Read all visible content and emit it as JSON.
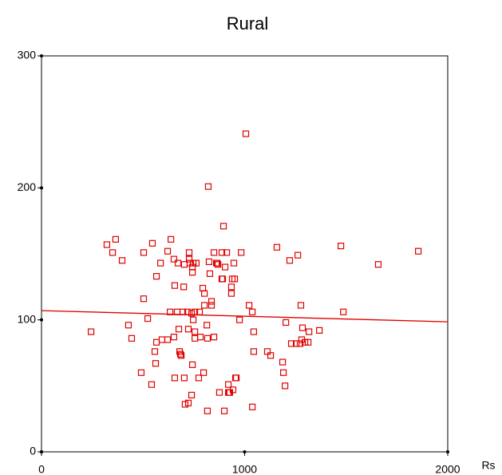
{
  "chart_data": {
    "type": "scatter",
    "title": "Rural",
    "x_label": "Rs",
    "color": "#e00000",
    "x": [
      244,
      322,
      350,
      365,
      397,
      428,
      444,
      491,
      503,
      503,
      523,
      542,
      546,
      558,
      562,
      566,
      566,
      586,
      593,
      621,
      621,
      637,
      633,
      652,
      652,
      656,
      656,
      668,
      672,
      676,
      680,
      684,
      688,
      696,
      700,
      703,
      703,
      707,
      719,
      723,
      723,
      727,
      727,
      731,
      739,
      739,
      743,
      743,
      743,
      747,
      747,
      755,
      755,
      755,
      762,
      774,
      778,
      782,
      794,
      798,
      802,
      802,
      814,
      817,
      817,
      821,
      825,
      829,
      837,
      837,
      849,
      849,
      861,
      865,
      869,
      876,
      888,
      888,
      892,
      896,
      900,
      904,
      912,
      920,
      920,
      924,
      927,
      935,
      935,
      939,
      943,
      947,
      951,
      955,
      959,
      975,
      983,
      1006,
      1022,
      1038,
      1045,
      1045,
      1038,
      1112,
      1128,
      1159,
      1187,
      1191,
      1203,
      1199,
      1222,
      1230,
      1254,
      1262,
      1273,
      1277,
      1281,
      1285,
      1297,
      1313,
      1317,
      1368,
      1474,
      1486,
      1658,
      1855
    ],
    "y": [
      91,
      157,
      151,
      161,
      145,
      96,
      86,
      60,
      151,
      116,
      101,
      51,
      158,
      76,
      67,
      133,
      83,
      143,
      85,
      85,
      152,
      161,
      106,
      146,
      87,
      126,
      56,
      106,
      143,
      93,
      76,
      74,
      73,
      106,
      125,
      142,
      56,
      36,
      106,
      93,
      37,
      151,
      146,
      143,
      105,
      43,
      140,
      136,
      66,
      143,
      100,
      106,
      91,
      86,
      143,
      56,
      106,
      87,
      124,
      60,
      111,
      120,
      96,
      86,
      31,
      201,
      144,
      135,
      114,
      111,
      151,
      87,
      143,
      143,
      142,
      45,
      151,
      131,
      131,
      171,
      31,
      140,
      151,
      45,
      51,
      45,
      45,
      125,
      120,
      131,
      47,
      143,
      131,
      56,
      56,
      100,
      151,
      241,
      111,
      106,
      91,
      76,
      34,
      76,
      73,
      155,
      68,
      60,
      98,
      50,
      145,
      82,
      82,
      149,
      82,
      111,
      85,
      94,
      83,
      83,
      91,
      92,
      156,
      106,
      142,
      152
    ],
    "trend_line": {
      "x": [
        0,
        2000
      ],
      "y": [
        107,
        98.5
      ]
    },
    "xlim": [
      0,
      2000
    ],
    "xticks": [
      0,
      1000,
      2000
    ],
    "ylim": [
      0,
      300
    ],
    "yticks": [
      0,
      100,
      200,
      300
    ]
  }
}
